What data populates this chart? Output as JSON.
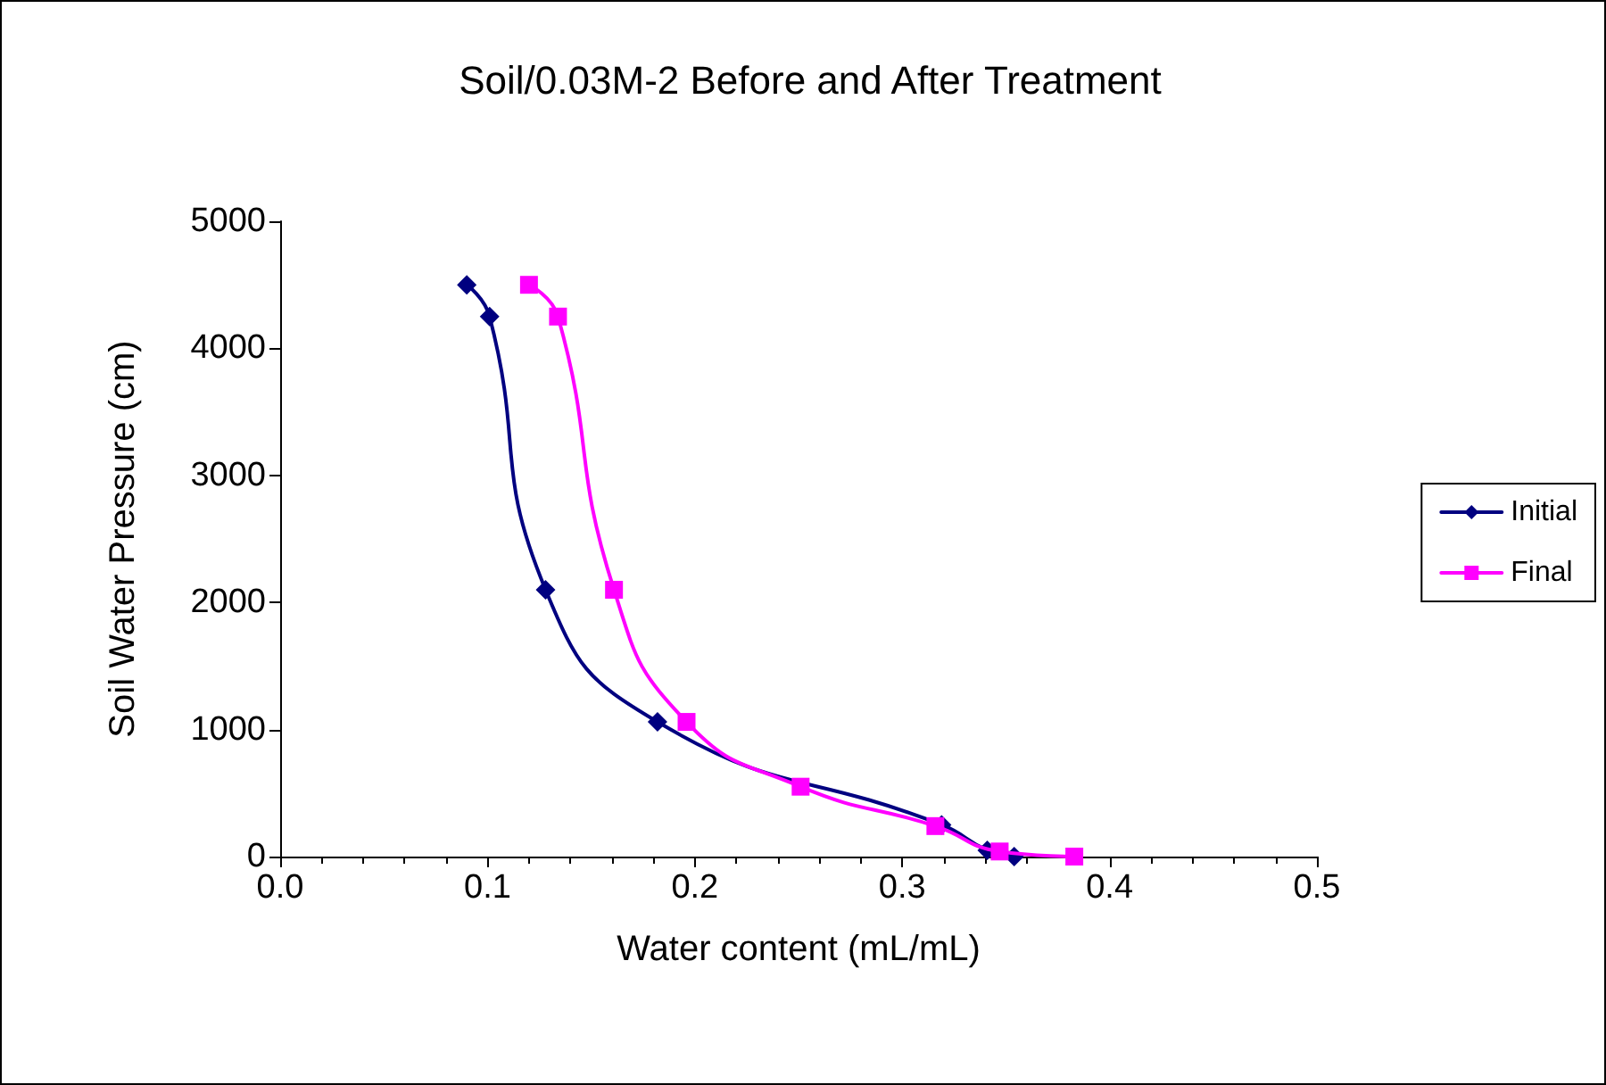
{
  "chart_data": {
    "type": "line",
    "title": "Soil/0.03M-2 Before and After Treatment",
    "xlabel": "Water content (mL/mL)",
    "ylabel": "Soil Water Pressure (cm)",
    "series": [
      {
        "name": "Initial",
        "color": "#000080",
        "marker": "diamond",
        "x": [
          0.09,
          0.101,
          0.128,
          0.182,
          0.251,
          0.319,
          0.341,
          0.354
        ],
        "values": [
          4500,
          4250,
          2100,
          1060,
          null,
          250,
          50,
          0
        ]
      },
      {
        "name": "Final",
        "color": "#ff00ff",
        "marker": "square",
        "x": [
          0.12,
          0.134,
          0.161,
          0.196,
          0.251,
          0.316,
          0.347,
          0.383
        ],
        "values": [
          4500,
          4250,
          2100,
          1060,
          550,
          240,
          40,
          0
        ]
      }
    ],
    "xlim": [
      0,
      0.5
    ],
    "xticks": [
      {
        "value": 0,
        "label": "0.0"
      },
      0.1,
      0.2,
      0.3,
      0.4,
      0.5
    ],
    "ylim": [
      0,
      5000
    ],
    "yticks": [
      0,
      1000,
      2000,
      3000,
      4000,
      5000
    ],
    "grid": false,
    "legend": "right"
  }
}
